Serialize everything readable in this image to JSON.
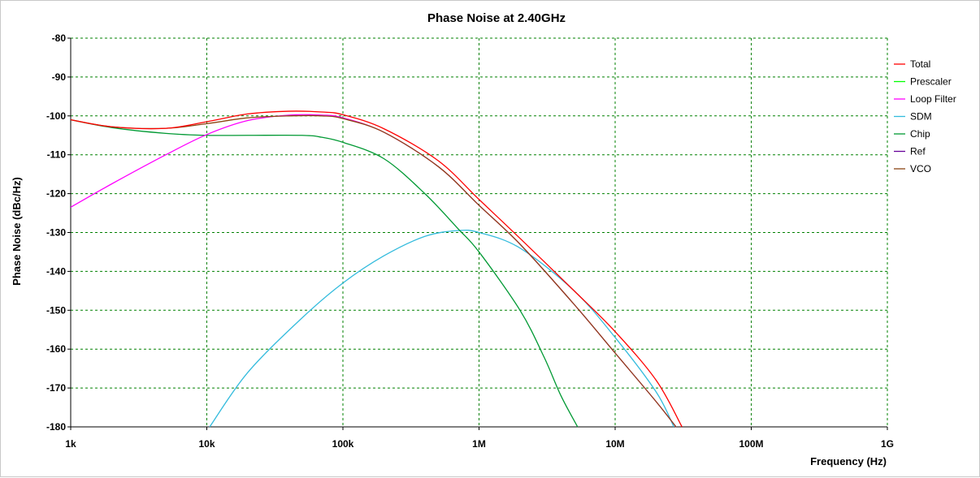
{
  "chart_data": {
    "type": "line",
    "title": "Phase Noise at 2.40GHz",
    "xlabel": "Frequency (Hz)",
    "ylabel": "Phase Noise (dBc/Hz)",
    "x_scale": "log",
    "xlim": [
      1000,
      1000000000
    ],
    "ylim": [
      -180,
      -80
    ],
    "x_ticks": [
      1000,
      10000,
      100000,
      1000000,
      10000000,
      100000000,
      1000000000
    ],
    "x_tick_labels": [
      "1k",
      "10k",
      "100k",
      "1M",
      "10M",
      "100M",
      "1G"
    ],
    "y_ticks": [
      -80,
      -90,
      -100,
      -110,
      -120,
      -130,
      -140,
      -150,
      -160,
      -170,
      -180
    ],
    "y_tick_labels": [
      "-80",
      "-90",
      "-100",
      "-110",
      "-120",
      "-130",
      "-140",
      "-150",
      "-160",
      "-170",
      "-180"
    ],
    "grid": true,
    "grid_color": "#008000",
    "legend_position": "right",
    "series": [
      {
        "name": "Total",
        "color": "#ff0000",
        "x": [
          1000,
          2000,
          5000,
          10000,
          20000,
          40000,
          70000,
          100000,
          200000,
          500000,
          1000000,
          2000000,
          5000000,
          10000000,
          20000000,
          31000000
        ],
        "y": [
          -101,
          -102.8,
          -103.2,
          -101.5,
          -99.5,
          -98.8,
          -99,
          -99.7,
          -103.3,
          -111.5,
          -121.5,
          -131.5,
          -145,
          -155.5,
          -168,
          -180
        ]
      },
      {
        "name": "Prescaler",
        "color": "#00ff00",
        "x": [],
        "y": []
      },
      {
        "name": "Loop Filter",
        "color": "#ff00ff",
        "x": [
          1000,
          2000,
          5000,
          10000,
          20000,
          40000,
          70000,
          100000,
          200000,
          500000,
          1000000,
          2000000,
          5000000,
          10000000,
          20000000,
          28000000
        ],
        "y": [
          -123.5,
          -117.5,
          -110,
          -104.8,
          -101.2,
          -99.8,
          -99.8,
          -100.5,
          -104.2,
          -113,
          -123,
          -133,
          -148.5,
          -161,
          -173.5,
          -180
        ]
      },
      {
        "name": "SDM",
        "color": "#33bbdd",
        "x": [
          10500,
          20000,
          50000,
          100000,
          200000,
          400000,
          700000,
          1000000,
          2000000,
          5000000,
          10000000,
          20000000,
          27000000
        ],
        "y": [
          -180,
          -166,
          -152,
          -143,
          -136,
          -131,
          -129.5,
          -130,
          -134,
          -145,
          -157,
          -171,
          -180
        ]
      },
      {
        "name": "Chip",
        "color": "#009933",
        "x": [
          1000,
          2000,
          5000,
          10000,
          20000,
          50000,
          70000,
          100000,
          200000,
          400000,
          700000,
          1000000,
          2000000,
          3000000,
          4000000,
          5300000
        ],
        "y": [
          -101,
          -103,
          -104.5,
          -105,
          -105,
          -105,
          -105.5,
          -106.8,
          -111,
          -120,
          -129,
          -135,
          -150,
          -162,
          -172,
          -180
        ]
      },
      {
        "name": "Ref",
        "color": "#660099",
        "x": [],
        "y": []
      },
      {
        "name": "VCO",
        "color": "#8b4513",
        "x": [
          1000,
          2000,
          5000,
          10000,
          20000,
          40000,
          70000,
          100000,
          200000,
          500000,
          1000000,
          2000000,
          5000000,
          10000000,
          20000000,
          28000000
        ],
        "y": [
          -101,
          -102.8,
          -103.2,
          -102,
          -100.5,
          -100,
          -100,
          -100.7,
          -104.2,
          -113,
          -123,
          -133,
          -148.5,
          -161,
          -173.5,
          -180
        ]
      }
    ]
  }
}
